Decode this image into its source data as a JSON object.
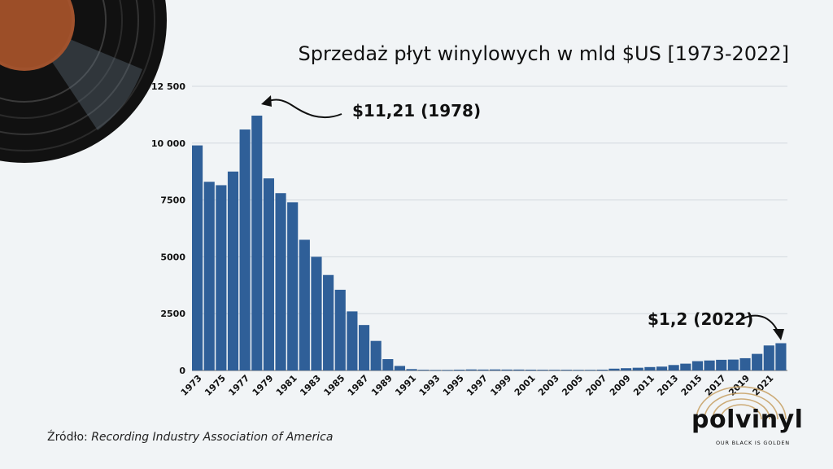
{
  "chart_data": {
    "type": "bar",
    "title": "Sprzedaż płyt winylowych w mld $US [1973-2022]",
    "x": [
      1973,
      1974,
      1975,
      1976,
      1977,
      1978,
      1979,
      1980,
      1981,
      1982,
      1983,
      1984,
      1985,
      1986,
      1987,
      1988,
      1989,
      1990,
      1991,
      1992,
      1993,
      1994,
      1995,
      1996,
      1997,
      1998,
      1999,
      2000,
      2001,
      2002,
      2003,
      2004,
      2005,
      2006,
      2007,
      2008,
      2009,
      2010,
      2011,
      2012,
      2013,
      2014,
      2015,
      2016,
      2017,
      2018,
      2019,
      2020,
      2021,
      2022
    ],
    "values": [
      9900,
      8300,
      8150,
      8750,
      10600,
      11210,
      8450,
      7800,
      7400,
      5750,
      5000,
      4200,
      3550,
      2600,
      2000,
      1300,
      500,
      200,
      60,
      30,
      20,
      20,
      35,
      45,
      40,
      45,
      40,
      40,
      35,
      30,
      30,
      30,
      25,
      25,
      35,
      80,
      100,
      120,
      150,
      170,
      240,
      300,
      410,
      440,
      470,
      480,
      540,
      730,
      1100,
      1200
    ],
    "xtick_labels": [
      "1973",
      "1975",
      "1977",
      "1979",
      "1981",
      "1983",
      "1985",
      "1987",
      "1989",
      "1991",
      "1993",
      "1995",
      "1997",
      "1999",
      "2001",
      "2003",
      "2005",
      "2007",
      "2009",
      "2011",
      "2013",
      "2015",
      "2017",
      "2019",
      "2021"
    ],
    "ytick_labels": [
      "0",
      "2500",
      "5000",
      "7500",
      "10 000",
      "12 500"
    ],
    "ylim": [
      0,
      12500
    ],
    "bar_color": "#2f5f98",
    "grid": true,
    "xlabel": "",
    "ylabel": ""
  },
  "annotations": {
    "peak": "$11,21 (1978)",
    "latest": "$1,2 (2022)"
  },
  "source": {
    "prefix": "Źródło: ",
    "name": "Recording Industry Association of America"
  },
  "logo": {
    "word": "polvinyl",
    "tagline": "OUR BLACK IS GOLDEN"
  }
}
